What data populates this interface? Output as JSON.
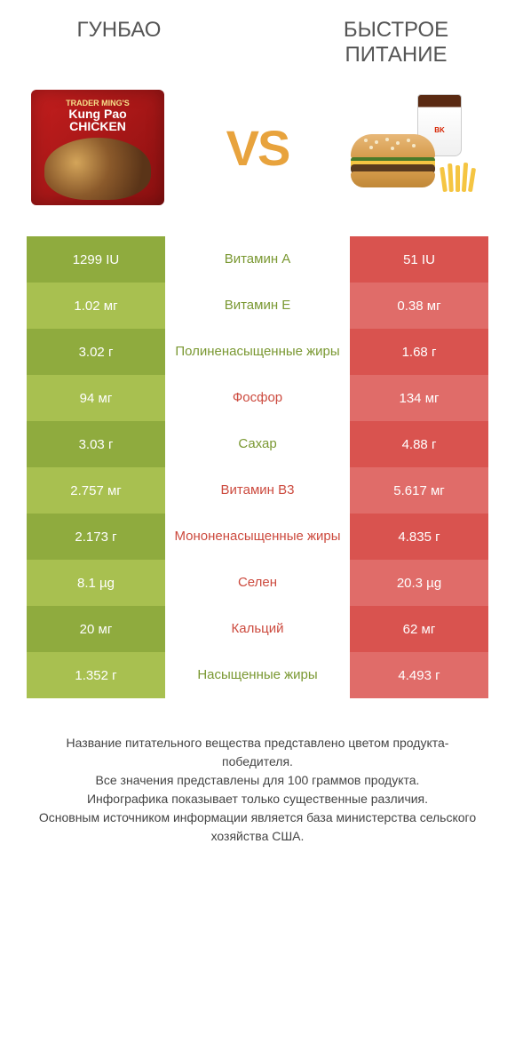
{
  "header": {
    "left": "ГУНБАО",
    "right": "БЫСТРОЕ ПИТАНИЕ",
    "vs": "VS"
  },
  "product_left_pack": {
    "line1": "TRADER MING'S",
    "line2": "Kung Pao",
    "line3": "CHICKEN"
  },
  "colors": {
    "green_dark": "#8fab3e",
    "green_light": "#a8c050",
    "red_dark": "#d9534f",
    "red_light": "#e06c69",
    "label_green": "#7a9832",
    "label_red": "#cc4a3e",
    "vs": "#e8a33d"
  },
  "rows": [
    {
      "label": "Витамин A",
      "left": "1299 IU",
      "right": "51 IU",
      "winner": "left"
    },
    {
      "label": "Витамин E",
      "left": "1.02 мг",
      "right": "0.38 мг",
      "winner": "left"
    },
    {
      "label": "Полиненасыщенные жиры",
      "left": "3.02 г",
      "right": "1.68 г",
      "winner": "left"
    },
    {
      "label": "Фосфор",
      "left": "94 мг",
      "right": "134 мг",
      "winner": "right"
    },
    {
      "label": "Сахар",
      "left": "3.03 г",
      "right": "4.88 г",
      "winner": "left"
    },
    {
      "label": "Витамин В3",
      "left": "2.757 мг",
      "right": "5.617 мг",
      "winner": "right"
    },
    {
      "label": "Мононенасыщенные жиры",
      "left": "2.173 г",
      "right": "4.835 г",
      "winner": "right"
    },
    {
      "label": "Селен",
      "left": "8.1 µg",
      "right": "20.3 µg",
      "winner": "right"
    },
    {
      "label": "Кальций",
      "left": "20 мг",
      "right": "62 мг",
      "winner": "right"
    },
    {
      "label": "Насыщенные жиры",
      "left": "1.352 г",
      "right": "4.493 г",
      "winner": "left"
    }
  ],
  "footnote": "Название питательного вещества представлено цветом продукта-победителя.\nВсе значения представлены для 100 граммов продукта.\nИнфографика показывает только существенные различия.\nОсновным источником информации является база министерства сельского хозяйства США."
}
